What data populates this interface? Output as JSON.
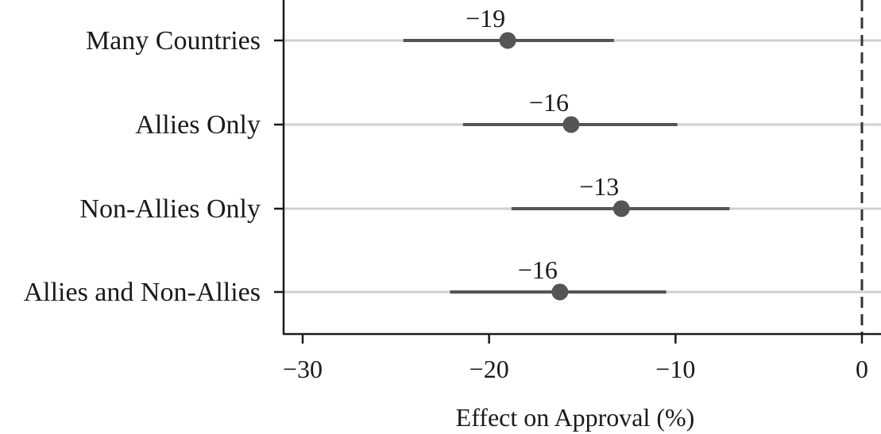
{
  "chart_data": {
    "type": "scatter",
    "title": "",
    "xlabel": "Effect on Approval (%)",
    "ylabel": "",
    "xlim": [
      -31,
      1
    ],
    "xticks": [
      -30,
      -20,
      -10,
      0
    ],
    "xtick_labels": [
      "−30",
      "−20",
      "−10",
      "0"
    ],
    "reference_line": 0,
    "grid": "horizontal",
    "categories": [
      "Many Countries",
      "Allies Only",
      "Non-Allies Only",
      "Allies and Non-Allies"
    ],
    "estimates": [
      -19,
      -15.6,
      -12.9,
      -16.2
    ],
    "ci_low": [
      -24.6,
      -21.4,
      -18.8,
      -22.1
    ],
    "ci_high": [
      -13.3,
      -9.9,
      -7.1,
      -10.5
    ],
    "value_labels": [
      "−19",
      "−16",
      "−13",
      "−16"
    ],
    "colors": {
      "point": "#555555",
      "ci": "#555555",
      "grid": "#d0d0d0",
      "axis": "#1a1a1a",
      "reference": "#333333"
    }
  }
}
